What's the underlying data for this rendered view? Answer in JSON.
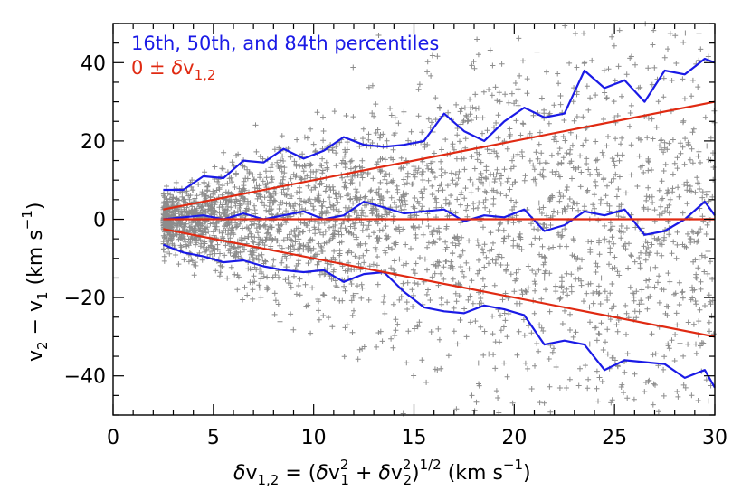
{
  "chart_data": {
    "type": "scatter",
    "xlim": [
      0,
      30
    ],
    "ylim": [
      -50,
      50
    ],
    "x_ticks": [
      0,
      5,
      10,
      15,
      20,
      25,
      30
    ],
    "y_ticks": [
      -40,
      -20,
      0,
      20,
      40
    ],
    "x_tick_labels": [
      "0",
      "5",
      "10",
      "15",
      "20",
      "25",
      "30"
    ],
    "y_tick_labels": [
      "−40",
      "−20",
      "0",
      "20",
      "40"
    ],
    "xlabel": {
      "delta": "δ",
      "v": "v",
      "sub12": "1,2",
      "eq_open": " = (",
      "sub1": "1",
      "sup2a": "2",
      "plus": " + ",
      "sub2": "2",
      "sup2b": "2",
      "close": ")",
      "sup_half": "1/2",
      "units": " (km s",
      "sup_m1": "−1",
      "units_close": ")"
    },
    "ylabel": {
      "v2": "v",
      "sub2": "2",
      "minus": " − v",
      "sub1": "1",
      "units": "  (km s",
      "sup_m1": "−1",
      "units_close": ")"
    },
    "legend": {
      "line1": "16th, 50th, and 84th percentiles",
      "line2_prefix": "0 ± ",
      "line2_delta": "δ",
      "line2_v": "v",
      "line2_sub": "1,2"
    },
    "legend_placement": "top-left",
    "colors": {
      "scatter": "#8c8c8c",
      "percentile": "#1a1ae6",
      "envelope": "#e02a12",
      "axis": "#000000"
    },
    "scatter": {
      "marker": "+",
      "count": 3000,
      "x_range": [
        2.5,
        30
      ],
      "y_spread_rule": "dispersion grows linearly with x; roughly symmetric about 0",
      "description": "gray plus markers, dense near x=2.5-5, fanning out to |y|~50 at x=30"
    },
    "series": [
      {
        "name": "84th percentile",
        "color": "#1a1ae6",
        "x": [
          2.5,
          3.5,
          4.5,
          5.5,
          6.5,
          7.5,
          8.5,
          9.5,
          10.5,
          11.5,
          12.5,
          13.5,
          14.5,
          15.5,
          16.5,
          17.5,
          18.5,
          19.5,
          20.5,
          21.5,
          22.5,
          23.5,
          24.5,
          25.5,
          26.5,
          27.5,
          28.5,
          29.5,
          30
        ],
        "y": [
          7.5,
          7.5,
          11,
          10.5,
          15,
          14.5,
          18,
          15.5,
          17.5,
          21,
          19,
          18.5,
          19,
          20,
          27,
          22.5,
          20,
          25,
          28.5,
          26,
          27,
          38,
          33.5,
          35.5,
          30,
          38,
          37,
          41,
          40
        ]
      },
      {
        "name": "50th percentile",
        "color": "#1a1ae6",
        "x": [
          2.5,
          3.5,
          4.5,
          5.5,
          6.5,
          7.5,
          8.5,
          9.5,
          10.5,
          11.5,
          12.5,
          13.5,
          14.5,
          15.5,
          16.5,
          17.5,
          18.5,
          19.5,
          20.5,
          21.5,
          22.5,
          23.5,
          24.5,
          25.5,
          26.5,
          27.5,
          28.5,
          29.5,
          30
        ],
        "y": [
          0,
          0.5,
          1,
          0,
          1.5,
          0,
          1,
          2,
          0,
          1,
          4.5,
          3,
          1.5,
          2,
          2.5,
          -0.5,
          1,
          0.5,
          2.5,
          -3,
          -1.5,
          2,
          1,
          2.5,
          -4,
          -3,
          0,
          4.5,
          1
        ]
      },
      {
        "name": "16th percentile",
        "color": "#1a1ae6",
        "x": [
          2.5,
          3.5,
          4.5,
          5.5,
          6.5,
          7.5,
          8.5,
          9.5,
          10.5,
          11.5,
          12.5,
          13.5,
          14.5,
          15.5,
          16.5,
          17.5,
          18.5,
          19.5,
          20.5,
          21.5,
          22.5,
          23.5,
          24.5,
          25.5,
          26.5,
          27.5,
          28.5,
          29.5,
          30
        ],
        "y": [
          -6.5,
          -8.5,
          -9.5,
          -11,
          -10.5,
          -12,
          -13,
          -13.5,
          -13,
          -16,
          -14,
          -13.5,
          -18.5,
          -22.5,
          -23.5,
          -24,
          -22,
          -23,
          -24.5,
          -32,
          -31,
          -32,
          -38.5,
          -36,
          -36.5,
          -37,
          -40.5,
          -38.5,
          -43
        ]
      },
      {
        "name": "+δv1,2",
        "color": "#e02a12",
        "x": [
          2.5,
          30
        ],
        "y": [
          2.5,
          30
        ]
      },
      {
        "name": "0",
        "color": "#e02a12",
        "x": [
          2.5,
          30
        ],
        "y": [
          0,
          0
        ]
      },
      {
        "name": "−δv1,2",
        "color": "#e02a12",
        "x": [
          2.5,
          30
        ],
        "y": [
          -2.5,
          -30
        ]
      }
    ]
  }
}
